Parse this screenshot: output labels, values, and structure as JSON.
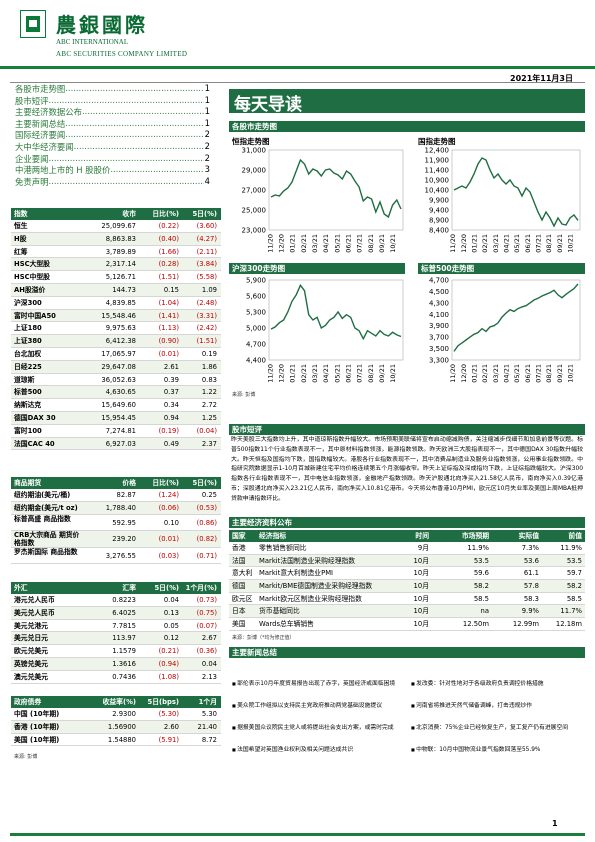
{
  "header": {
    "company_cn": "農銀國際",
    "company_en1": "ABC INTERNATIONAL",
    "company_en2": "ABC SECURITIES COMPANY LIMITED",
    "date": "2021年11月3日"
  },
  "toc": [
    {
      "t": "各股市走势图",
      "p": "1"
    },
    {
      "t": "股市短评",
      "p": "1"
    },
    {
      "t": "主要经济数据公布",
      "p": "1"
    },
    {
      "t": "主要新闻总结",
      "p": "1"
    },
    {
      "t": "国际经济要闻",
      "p": "2"
    },
    {
      "t": "大中华经济要闻",
      "p": "2"
    },
    {
      "t": "企业要闻",
      "p": "2"
    },
    {
      "t": "中港两地上市的 H 股股价",
      "p": "3"
    },
    {
      "t": "免责声明",
      "p": "4"
    }
  ],
  "main_title": "每天导读",
  "indices": {
    "header": [
      "指数",
      "收市",
      "日比(%)",
      "5日(%)"
    ],
    "rows": [
      [
        "恒生",
        "25,099.67",
        "(0.22)",
        "(3.60)"
      ],
      [
        "H股",
        "8,863.83",
        "(0.40)",
        "(4.27)"
      ],
      [
        "红筹",
        "3,789.89",
        "(1.66)",
        "(2.11)"
      ],
      [
        "HSC大型股",
        "2,317.14",
        "(0.28)",
        "(3.84)"
      ],
      [
        "HSC中型股",
        "5,126.71",
        "(1.51)",
        "(5.58)"
      ],
      [
        "AH股溢价",
        "144.73",
        "0.15",
        "1.09"
      ],
      [
        "沪深300",
        "4,839.85",
        "(1.04)",
        "(2.48)"
      ],
      [
        "富时中国A50",
        "15,548.46",
        "(1.41)",
        "(3.31)"
      ],
      [
        "上证180",
        "9,975.63",
        "(1.13)",
        "(2.42)"
      ],
      [
        "上证380",
        "6,412.38",
        "(0.90)",
        "(1.51)"
      ],
      [
        "台北加权",
        "17,065.97",
        "(0.01)",
        "0.19"
      ],
      [
        "日经225",
        "29,647.08",
        "2.61",
        "1.86"
      ],
      [
        "道琼斯",
        "36,052.63",
        "0.39",
        "0.83"
      ],
      [
        "标普500",
        "4,630.65",
        "0.37",
        "1.22"
      ],
      [
        "纳斯达克",
        "15,649.60",
        "0.34",
        "2.72"
      ],
      [
        "德国DAX 30",
        "15,954.45",
        "0.94",
        "1.25"
      ],
      [
        "富时100",
        "7,274.81",
        "(0.19)",
        "(0.04)"
      ],
      [
        "法国CAC 40",
        "6,927.03",
        "0.49",
        "2.37"
      ]
    ]
  },
  "commodities": {
    "header": [
      "商品期货",
      "价格",
      "日比(%)",
      "5日(%)"
    ],
    "rows": [
      [
        "纽约期油(美元/桶)",
        "82.87",
        "(1.24)",
        "0.25"
      ],
      [
        "纽约期金(美元/t oz)",
        "1,788.40",
        "(0.06)",
        "(0.53)"
      ],
      [
        "标普高盛 商品指数",
        "592.95",
        "0.10",
        "(0.86)"
      ],
      [
        "CRB大宗商品 期货价格指数",
        "239.20",
        "(0.01)",
        "(0.82)"
      ],
      [
        "罗杰斯国际 商品指数",
        "3,276.55",
        "(0.03)",
        "(0.71)"
      ]
    ]
  },
  "fx": {
    "header": [
      "外汇",
      "汇率",
      "5日(%)",
      "1个月(%)"
    ],
    "rows": [
      [
        "港元兑人民币",
        "0.8223",
        "0.04",
        "(0.73)"
      ],
      [
        "美元兑人民币",
        "6.4025",
        "0.13",
        "(0.75)"
      ],
      [
        "美元兑港元",
        "7.7815",
        "0.05",
        "(0.07)"
      ],
      [
        "美元兑日元",
        "113.97",
        "0.12",
        "2.67"
      ],
      [
        "欧元兑美元",
        "1.1579",
        "(0.21)",
        "(0.36)"
      ],
      [
        "英镑兑美元",
        "1.3616",
        "(0.94)",
        "0.04"
      ],
      [
        "澳元兑美元",
        "0.7436",
        "(1.08)",
        "2.13"
      ]
    ]
  },
  "bonds": {
    "header": [
      "政府债券",
      "收益率(%)",
      "5日(bps)",
      "1个月(bps)"
    ],
    "rows": [
      [
        "中国 (10年期)",
        "2.9300",
        "(5.30)",
        "5.30"
      ],
      [
        "香港 (10年期)",
        "1.56900",
        "2.60",
        "21.40"
      ],
      [
        "美国 (10年期)",
        "1.54880",
        "(5.91)",
        "8.72"
      ]
    ],
    "source": "来源: 彭博"
  },
  "charts": {
    "section_title": "各股市走势图",
    "source": "来源: 彭博",
    "x_labels": [
      "11/20",
      "12/20",
      "01/21",
      "02/21",
      "03/21",
      "04/21",
      "05/21",
      "06/21",
      "07/21",
      "08/21",
      "09/21",
      "10/21"
    ],
    "panels": [
      {
        "title": "恒指走势图",
        "y_ticks": [
          "31,000",
          "29,000",
          "27,000",
          "25,000",
          "23,000"
        ],
        "ylim": [
          23000,
          31000
        ],
        "values": [
          26300,
          26500,
          26400,
          26900,
          27200,
          27800,
          28900,
          30000,
          29600,
          28600,
          29100,
          28900,
          28400,
          29000,
          29100,
          28700,
          28500,
          28100,
          28900,
          28600,
          27900,
          27300,
          25900,
          26300,
          26100,
          24800,
          25800,
          24600,
          24300,
          25500,
          26000,
          25100
        ]
      },
      {
        "title": "国指走势图",
        "y_ticks": [
          "12,400",
          "11,900",
          "11,400",
          "10,900",
          "10,400",
          "9,900",
          "9,400",
          "8,900",
          "8,400"
        ],
        "ylim": [
          8400,
          12400
        ],
        "values": [
          10400,
          10500,
          10600,
          10500,
          10800,
          11200,
          11700,
          12000,
          11900,
          11400,
          11000,
          11200,
          10900,
          10700,
          10900,
          10600,
          10500,
          10100,
          10500,
          10300,
          9800,
          9300,
          8900,
          9300,
          9000,
          8600,
          9000,
          8700,
          8650,
          9000,
          9150,
          8880
        ]
      },
      {
        "title": "沪深300走势图",
        "y_ticks": [
          "5,900",
          "5,600",
          "5,300",
          "5,000",
          "4,700",
          "4,400"
        ],
        "ylim": [
          4400,
          5900
        ],
        "values": [
          4980,
          5020,
          5100,
          5150,
          5300,
          5500,
          5620,
          5800,
          5700,
          5250,
          5150,
          5200,
          5000,
          5050,
          5150,
          5200,
          5300,
          5180,
          5250,
          5200,
          5000,
          4950,
          4800,
          4950,
          4900,
          4850,
          4950,
          4880,
          4850,
          4920,
          4870,
          4840
        ]
      },
      {
        "title": "标普500走势图",
        "y_ticks": [
          "4,700",
          "4,500",
          "4,300",
          "4,100",
          "3,900",
          "3,700",
          "3,500",
          "3,300"
        ],
        "ylim": [
          3300,
          4700
        ],
        "values": [
          3450,
          3550,
          3600,
          3650,
          3700,
          3750,
          3780,
          3850,
          3800,
          3880,
          3900,
          3950,
          4050,
          4120,
          4180,
          4150,
          4200,
          4230,
          4250,
          4300,
          4350,
          4380,
          4420,
          4450,
          4480,
          4520,
          4440,
          4390,
          4450,
          4500,
          4550,
          4630
        ]
      }
    ]
  },
  "commentary": {
    "title": "股市短评",
    "text": "昨天美股三大指数均上升，其中道琼斯指数升幅较大。市场预期美联储将宣布启动缩减购债，关注缩减步伐细节和加息前景等议题。标普500指数11个行业指数表现不一，其中原材料指数领涨，能源指数领跌。昨天欧洲三大股指表现不一，其中德国DAX 30指数升幅较大。昨天恒指及国指均下跌，国指跌幅较大。港股各行业指数表现不一，其中消费品制造业及服务业指数领涨，公用事业指数领跌。中指研究院数据显示1-10月百城新建住宅平均价格连续第五个月涨幅收窄。昨天上证综指及深成指均下跌，上证综指跌幅较大。沪深300指数各行业指数表现不一，其中电信业指数领涨，金融地产指数领跌。昨天沪股通北向净买入21.58亿人民币，南向净买入0.39亿港币；深股通北向净买入23.21亿人民币，南向净买入10.81亿港币。今天将公布香港10月PMI，欧元区10月失业率及美国上周MBA抵押贷款申请指数环比。"
  },
  "econ": {
    "title": "主要经济资料公布",
    "header": [
      "国家",
      "经济指标",
      "时间",
      "市场预期",
      "实际值",
      "前值"
    ],
    "rows": [
      [
        "香港",
        "零售销售额同比",
        "9月",
        "11.9%",
        "7.3%",
        "11.9%"
      ],
      [
        "法国",
        "Markit法国制造业采购经理指数",
        "10月",
        "53.5",
        "53.6",
        "53.5"
      ],
      [
        "意大利",
        "Markit意大利制造业PMI",
        "10月",
        "59.6",
        "61.1",
        "59.7"
      ],
      [
        "德国",
        "Markit/BME德国制造业采购经理指数",
        "10月",
        "58.2",
        "57.8",
        "58.2"
      ],
      [
        "欧元区",
        "Markit欧元区制造业采购经理指数",
        "10月",
        "58.5",
        "58.3",
        "58.5"
      ],
      [
        "日本",
        "货币基础同比",
        "10月",
        "na",
        "9.9%",
        "11.7%"
      ],
      [
        "美国",
        "Wards总车辆销售",
        "10月",
        "12.50m",
        "12.99m",
        "12.18m"
      ]
    ],
    "source": "来源：彭博（*均为修正值）"
  },
  "news": {
    "title": "主要新闻总结",
    "left": [
      "耶伦表示10月年度贸易报告出现了赤字，英国经济或面临困境",
      "美众院工作组拟以支持民主党政府推动两党基础设施提议",
      "据报美国众议院民主党人或将提出社会支出方案，或需时完成",
      "法国希望对英国渔业权利及相关问题达成共识"
    ],
    "right": [
      "发改委：针对性地对于各级政府负责调控价格措施",
      "河南省将推进天然气储备调峰，打击违规炒作",
      "北京消费：75%企业已经恢复生产，复工复产仍有进展空间",
      "中物联：10月中国物流业景气指数回落至55.9%"
    ]
  },
  "page_number": "1"
}
